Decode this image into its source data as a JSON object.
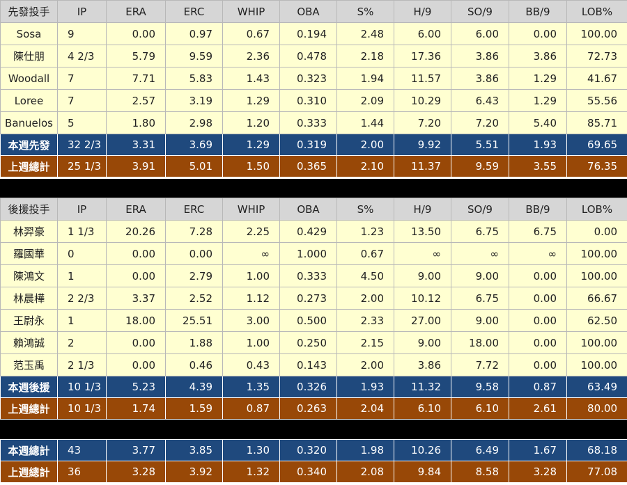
{
  "starters": {
    "headers": [
      "先發投手",
      "IP",
      "ERA",
      "ERC",
      "WHIP",
      "OBA",
      "S%",
      "H/9",
      "SO/9",
      "BB/9",
      "LOB%"
    ],
    "rows": [
      [
        "Sosa",
        "9",
        "0.00",
        "0.97",
        "0.67",
        "0.194",
        "2.48",
        "6.00",
        "6.00",
        "0.00",
        "100.00"
      ],
      [
        "陳仕朋",
        "4 2/3",
        "5.79",
        "9.59",
        "2.36",
        "0.478",
        "2.18",
        "17.36",
        "3.86",
        "3.86",
        "72.73"
      ],
      [
        "Woodall",
        "7",
        "7.71",
        "5.83",
        "1.43",
        "0.323",
        "1.94",
        "11.57",
        "3.86",
        "1.29",
        "41.67"
      ],
      [
        "Loree",
        "7",
        "2.57",
        "3.19",
        "1.29",
        "0.310",
        "2.09",
        "10.29",
        "6.43",
        "1.29",
        "55.56"
      ],
      [
        "Banuelos",
        "5",
        "1.80",
        "2.98",
        "1.20",
        "0.333",
        "1.44",
        "7.20",
        "7.20",
        "5.40",
        "85.71"
      ]
    ],
    "week_total": [
      "本週先發",
      "32 2/3",
      "3.31",
      "3.69",
      "1.29",
      "0.319",
      "2.00",
      "9.92",
      "5.51",
      "1.93",
      "69.65"
    ],
    "last_week_total": [
      "上週總計",
      "25 1/3",
      "3.91",
      "5.01",
      "1.50",
      "0.365",
      "2.10",
      "11.37",
      "9.59",
      "3.55",
      "76.35"
    ]
  },
  "relievers": {
    "headers": [
      "後援投手",
      "IP",
      "ERA",
      "ERC",
      "WHIP",
      "OBA",
      "S%",
      "H/9",
      "SO/9",
      "BB/9",
      "LOB%"
    ],
    "rows": [
      [
        "林羿豪",
        "1 1/3",
        "20.26",
        "7.28",
        "2.25",
        "0.429",
        "1.23",
        "13.50",
        "6.75",
        "6.75",
        "0.00"
      ],
      [
        "羅國華",
        "0",
        "0.00",
        "0.00",
        "∞",
        "1.000",
        "0.67",
        "∞",
        "∞",
        "∞",
        "100.00"
      ],
      [
        "陳鴻文",
        "1",
        "0.00",
        "2.79",
        "1.00",
        "0.333",
        "4.50",
        "9.00",
        "9.00",
        "0.00",
        "100.00"
      ],
      [
        "林晨樺",
        "2 2/3",
        "3.37",
        "2.52",
        "1.12",
        "0.273",
        "2.00",
        "10.12",
        "6.75",
        "0.00",
        "66.67"
      ],
      [
        "王尉永",
        "1",
        "18.00",
        "25.51",
        "3.00",
        "0.500",
        "2.33",
        "27.00",
        "9.00",
        "0.00",
        "62.50"
      ],
      [
        "賴鴻誠",
        "2",
        "0.00",
        "1.88",
        "1.00",
        "0.250",
        "2.15",
        "9.00",
        "18.00",
        "0.00",
        "100.00"
      ],
      [
        "范玉禹",
        "2 1/3",
        "0.00",
        "0.46",
        "0.43",
        "0.143",
        "2.00",
        "3.86",
        "7.72",
        "0.00",
        "100.00"
      ]
    ],
    "week_total": [
      "本週後援",
      "10 1/3",
      "5.23",
      "4.39",
      "1.35",
      "0.326",
      "1.93",
      "11.32",
      "9.58",
      "0.87",
      "63.49"
    ],
    "last_week_total": [
      "上週總計",
      "10 1/3",
      "1.74",
      "1.59",
      "0.87",
      "0.263",
      "2.04",
      "6.10",
      "6.10",
      "2.61",
      "80.00"
    ]
  },
  "totals": {
    "week_total": [
      "本週總計",
      "43",
      "3.77",
      "3.85",
      "1.30",
      "0.320",
      "1.98",
      "10.26",
      "6.49",
      "1.67",
      "68.18"
    ],
    "last_week_total": [
      "上週總計",
      "36",
      "3.28",
      "3.92",
      "1.32",
      "0.340",
      "2.08",
      "9.84",
      "8.58",
      "3.28",
      "77.08"
    ]
  }
}
